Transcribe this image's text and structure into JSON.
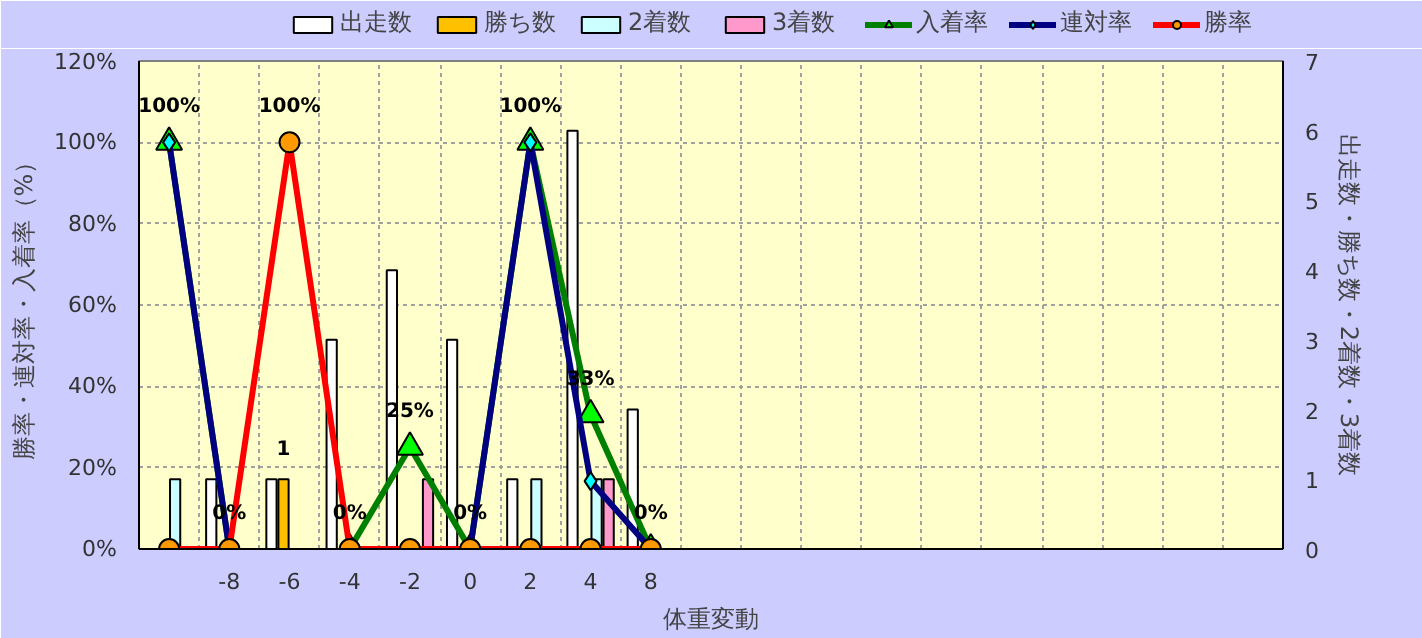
{
  "chart_data": {
    "type": "bar",
    "xlabel": "体重変動",
    "ylabel": "勝率・連対率・入着率（%）",
    "y2label": "出走数・勝ち数・2着数・3着数",
    "categories": [
      null,
      "-8",
      "-6",
      "-4",
      "-2",
      "0",
      "2",
      "4",
      "8",
      null,
      null,
      null,
      null,
      null,
      null,
      null,
      null,
      null,
      null
    ],
    "ylim": [
      0,
      120
    ],
    "yticks": [
      {
        "value": 0,
        "label": "0%"
      },
      {
        "value": 20,
        "label": "20%"
      },
      {
        "value": 40,
        "label": "40%"
      },
      {
        "value": 60,
        "label": "60%"
      },
      {
        "value": 80,
        "label": "80%"
      },
      {
        "value": 100,
        "label": "100%"
      },
      {
        "value": 120,
        "label": "120%"
      }
    ],
    "y2lim": [
      0,
      7
    ],
    "y2ticks": [
      0,
      1,
      2,
      3,
      4,
      5,
      6,
      7
    ],
    "grid": true,
    "legend": "top",
    "series": [
      {
        "name": "出走数",
        "axis": "y2",
        "color": "#ffffff",
        "values": [
          0,
          1,
          1,
          3,
          4,
          3,
          1,
          6,
          2,
          null,
          null,
          null,
          null,
          null,
          null,
          null,
          null,
          null,
          null
        ]
      },
      {
        "name": "勝ち数",
        "axis": "y2",
        "color": "#ffc000",
        "values": [
          0,
          0,
          1,
          0,
          0,
          0,
          0,
          0,
          0,
          null,
          null,
          null,
          null,
          null,
          null,
          null,
          null,
          null,
          null
        ],
        "value_labels": [
          null,
          null,
          "1",
          null,
          null,
          null,
          null,
          null,
          null,
          null,
          null,
          null,
          null,
          null,
          null,
          null,
          null,
          null,
          null
        ]
      },
      {
        "name": "2着数",
        "axis": "y2",
        "color": "#ccffff",
        "values": [
          1,
          0,
          0,
          0,
          0,
          0,
          1,
          1,
          0,
          null,
          null,
          null,
          null,
          null,
          null,
          null,
          null,
          null,
          null
        ]
      },
      {
        "name": "3着数",
        "axis": "y2",
        "color": "#ff99cc",
        "values": [
          0,
          0,
          0,
          0,
          1,
          0,
          0,
          1,
          0,
          null,
          null,
          null,
          null,
          null,
          null,
          null,
          null,
          null,
          null
        ]
      },
      {
        "name": "入着率",
        "type": "line",
        "marker": "triangle",
        "color": "#008000",
        "values": [
          100,
          0,
          null,
          0,
          25,
          0,
          100,
          33,
          0,
          null,
          null,
          null,
          null,
          null,
          null,
          null,
          null,
          null,
          null
        ],
        "value_labels": [
          null,
          null,
          null,
          "0%",
          "25%",
          "0%",
          null,
          "33%",
          "0%",
          null,
          null,
          null,
          null,
          null,
          null,
          null,
          null,
          null,
          null
        ]
      },
      {
        "name": "連対率",
        "type": "line",
        "marker": "diamond",
        "color": "#000080",
        "values": [
          100,
          0,
          null,
          null,
          null,
          0,
          100,
          16.7,
          0,
          null,
          null,
          null,
          null,
          null,
          null,
          null,
          null,
          null,
          null
        ],
        "value_labels": [
          "100%",
          "0%",
          null,
          null,
          null,
          null,
          "100%",
          null,
          null,
          null,
          null,
          null,
          null,
          null,
          null,
          null,
          null,
          null,
          null
        ]
      },
      {
        "name": "勝率",
        "type": "line",
        "marker": "circle",
        "color": "#ff0000",
        "values": [
          0,
          0,
          100,
          0,
          0,
          0,
          0,
          0,
          0,
          null,
          null,
          null,
          null,
          null,
          null,
          null,
          null,
          null,
          null
        ],
        "value_labels": [
          null,
          null,
          "100%",
          null,
          null,
          null,
          null,
          null,
          null,
          null,
          null,
          null,
          null,
          null,
          null,
          null,
          null,
          null,
          null
        ]
      }
    ]
  }
}
